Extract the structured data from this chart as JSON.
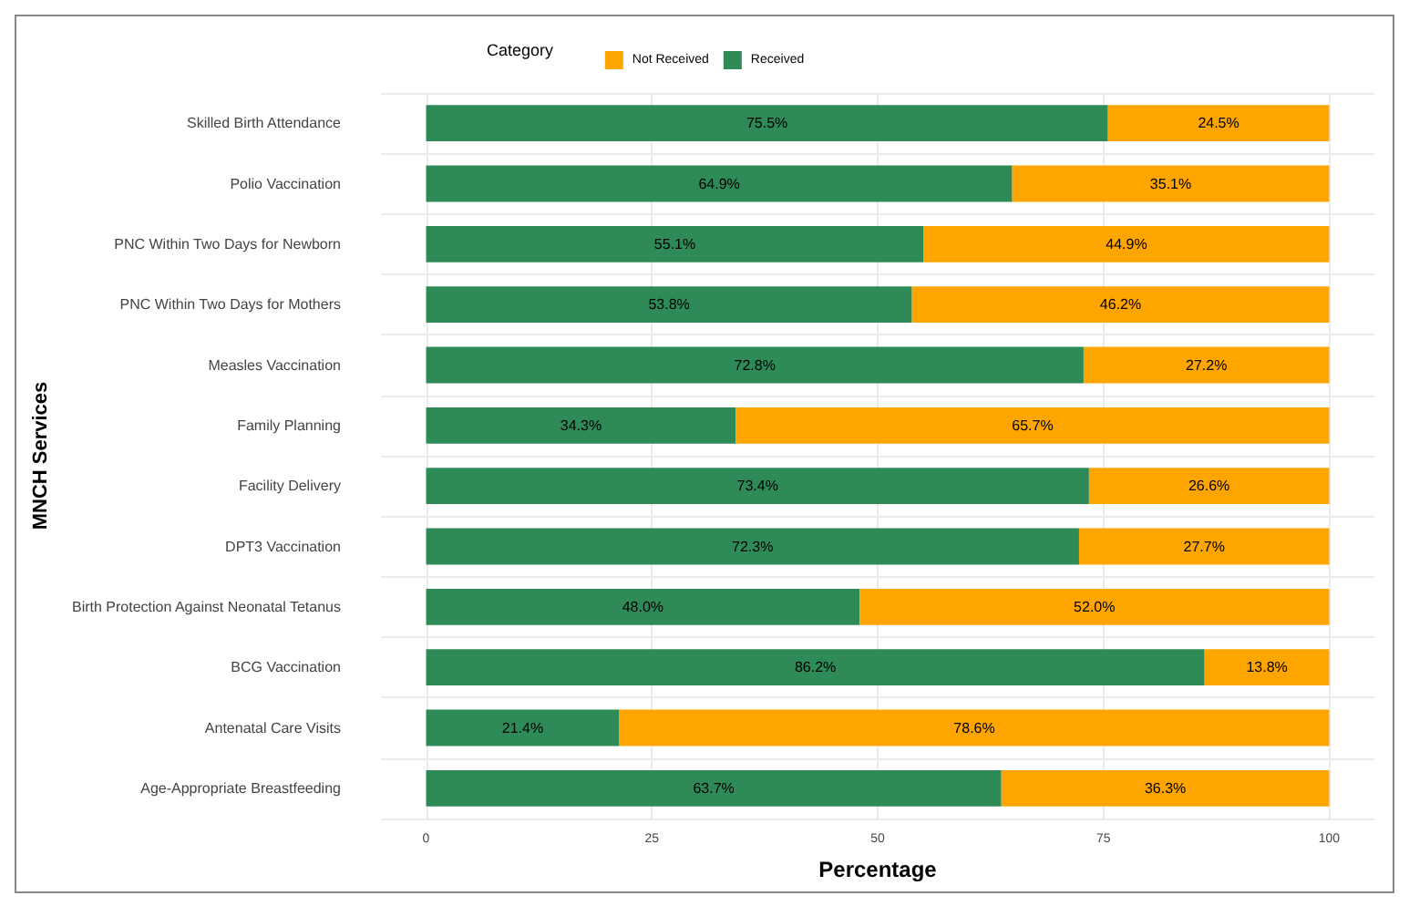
{
  "chart_data": {
    "type": "bar",
    "orientation": "horizontal",
    "stacked": true,
    "xlabel": "Percentage",
    "ylabel": "MNCH Services",
    "legend_title": "Category",
    "legend": "top",
    "categories": [
      "Skilled Birth Attendance",
      "Polio Vaccination",
      "PNC Within Two Days for Newborn",
      "PNC Within Two Days for Mothers",
      "Measles Vaccination",
      "Family Planning",
      "Facility Delivery",
      "DPT3 Vaccination",
      "Birth Protection Against Neonatal Tetanus",
      "BCG Vaccination",
      "Antenatal Care Visits",
      "Age-Appropriate Breastfeeding"
    ],
    "series": [
      {
        "name": "Received",
        "color": "#2e8b57",
        "values": [
          75.5,
          64.9,
          55.1,
          53.8,
          72.8,
          34.3,
          73.4,
          72.3,
          48.0,
          86.2,
          21.4,
          63.7
        ],
        "value_labels": [
          "75.5%",
          "64.9%",
          "55.1%",
          "53.8%",
          "72.8%",
          "34.3%",
          "73.4%",
          "72.3%",
          "48.0%",
          "86.2%",
          "21.4%",
          "63.7%"
        ]
      },
      {
        "name": "Not Received",
        "color": "#ffa500",
        "values": [
          24.5,
          35.1,
          44.9,
          46.2,
          27.2,
          65.7,
          26.6,
          27.7,
          52.0,
          13.8,
          78.6,
          36.3
        ],
        "value_labels": [
          "24.5%",
          "35.1%",
          "44.9%",
          "46.2%",
          "27.2%",
          "65.7%",
          "26.6%",
          "27.7%",
          "52.0%",
          "13.8%",
          "78.6%",
          "36.3%"
        ]
      }
    ],
    "xlim": [
      -5,
      105
    ],
    "xticks": [
      0,
      25,
      50,
      75,
      100
    ],
    "grid": true
  }
}
